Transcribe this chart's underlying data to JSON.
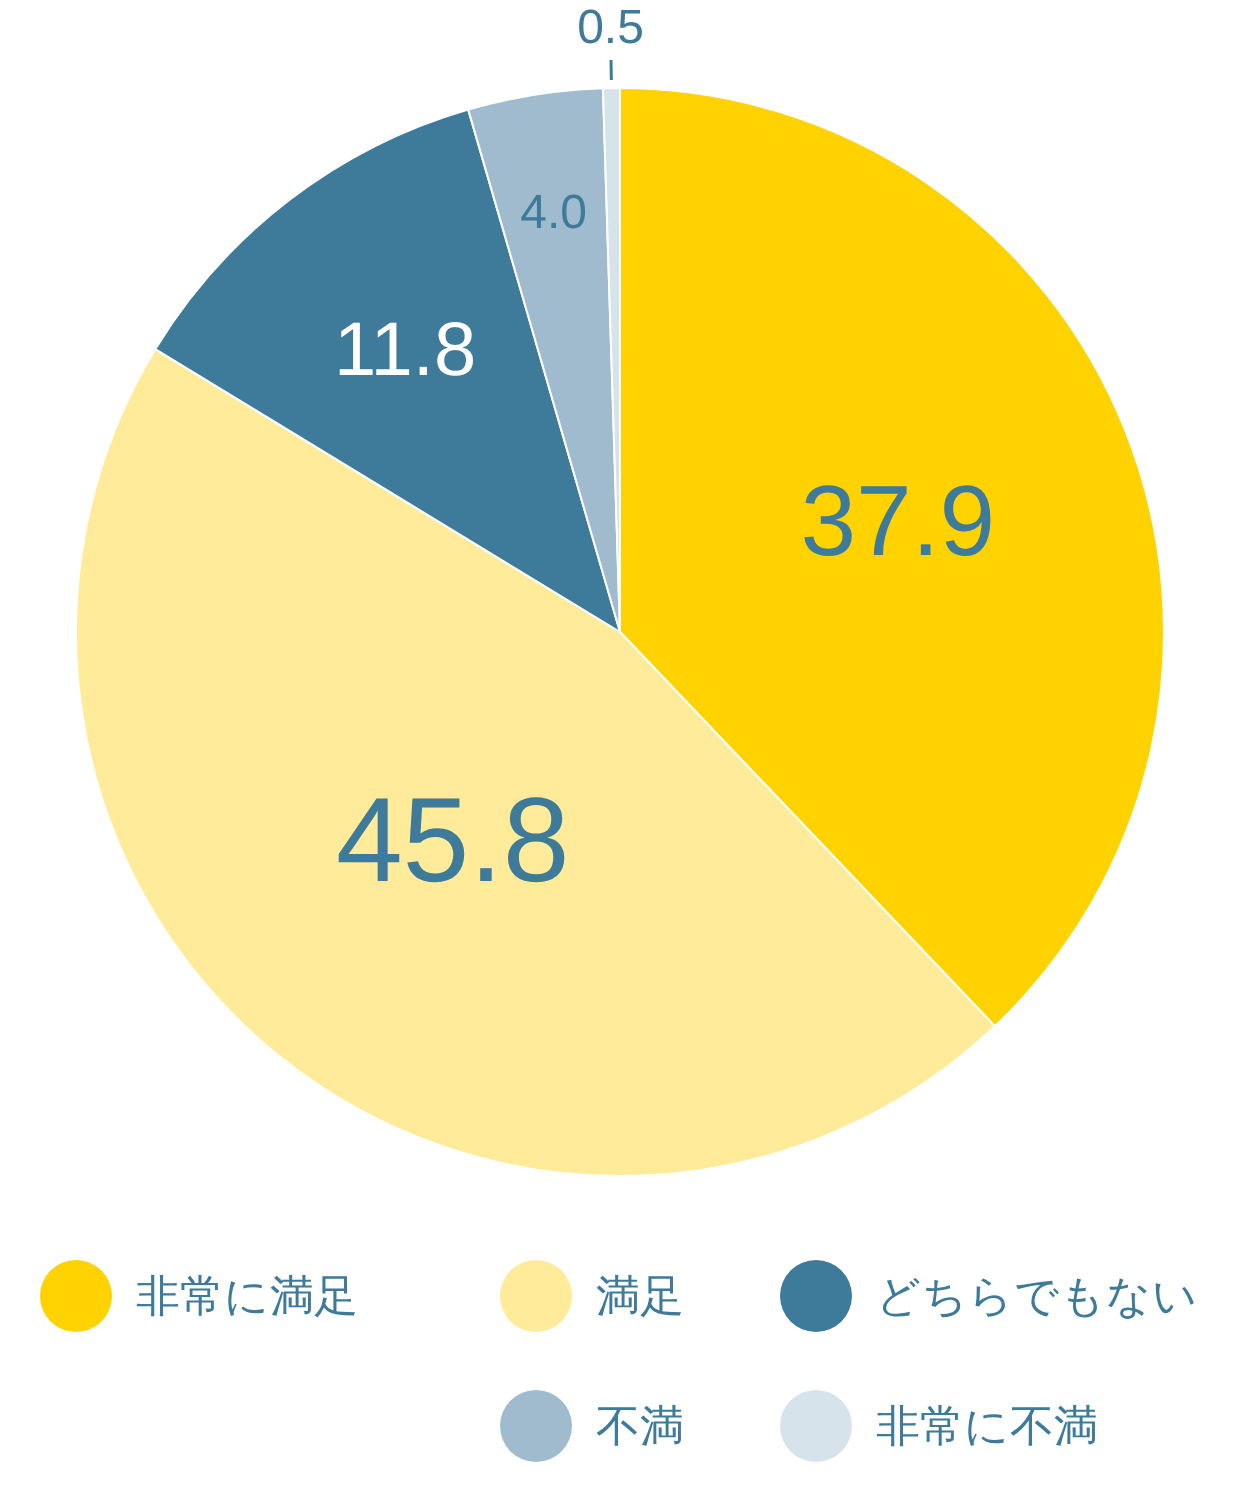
{
  "chart_data": {
    "type": "pie",
    "categories": [
      "非常に満足",
      "満足",
      "どちらでもない",
      "不満",
      "非常に不満"
    ],
    "values": [
      37.9,
      45.8,
      11.8,
      4.0,
      0.5
    ],
    "colors": [
      "#ffd200",
      "#ffeb99",
      "#3e7a9a",
      "#a1bbce",
      "#d7e3eb"
    ],
    "value_labels": [
      "37.9",
      "45.8",
      "11.8",
      "4.0",
      "0.5"
    ],
    "legend": "bottom"
  }
}
